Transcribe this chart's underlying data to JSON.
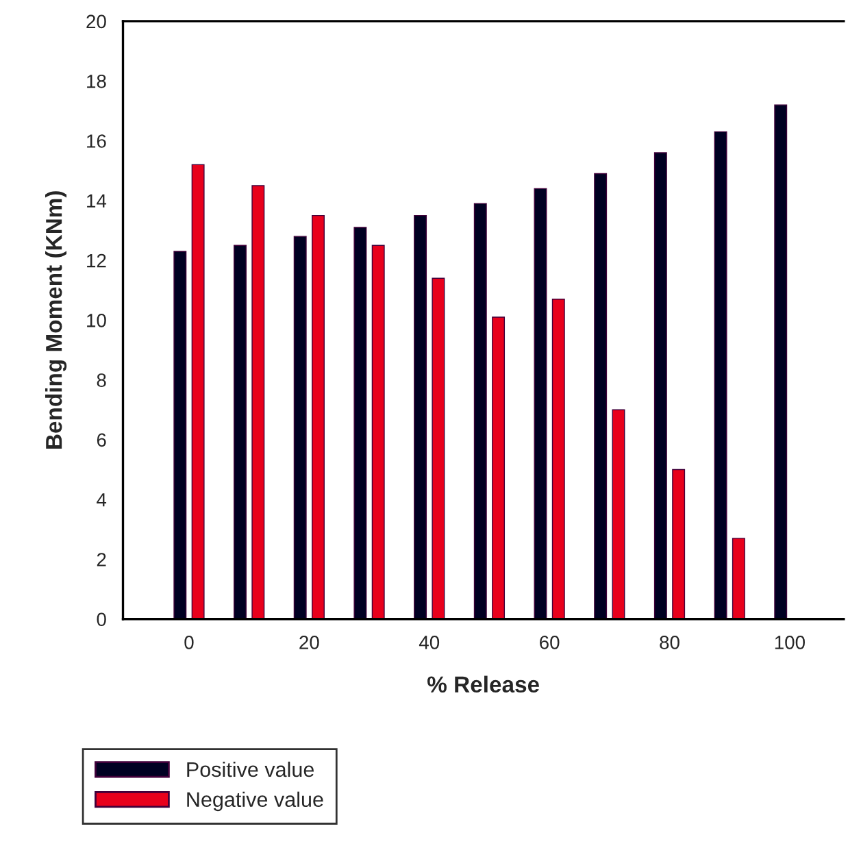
{
  "chart_data": {
    "type": "bar",
    "xlabel": "% Release",
    "ylabel": "Bending Moment (KNm)",
    "x": [
      0,
      10,
      20,
      30,
      40,
      50,
      60,
      70,
      80,
      90,
      100
    ],
    "series": [
      {
        "name": "Positive value",
        "color": "#000022",
        "values": [
          12.3,
          12.5,
          12.8,
          13.1,
          13.5,
          13.9,
          14.4,
          14.9,
          15.6,
          16.3,
          17.2
        ]
      },
      {
        "name": "Negative value",
        "color": "#e8001c",
        "values": [
          15.2,
          14.5,
          13.5,
          12.5,
          11.4,
          10.1,
          10.7,
          7.0,
          5.0,
          2.7,
          null
        ]
      }
    ],
    "xlim": [
      -11,
      109
    ],
    "xticks": [
      0,
      20,
      40,
      60,
      80,
      100
    ],
    "ylim": [
      0,
      20
    ],
    "yticks": [
      0,
      2,
      4,
      6,
      8,
      10,
      12,
      14,
      16,
      18,
      20
    ],
    "grid": false,
    "legend": "bottom left"
  }
}
